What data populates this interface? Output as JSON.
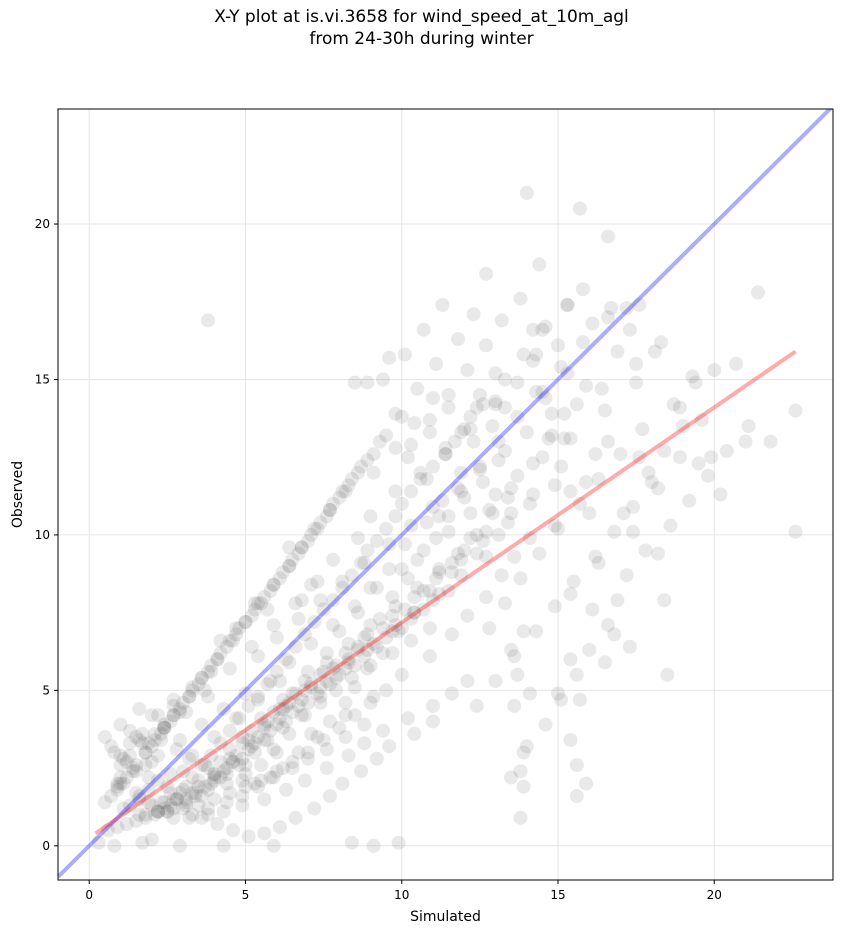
{
  "chart_data": {
    "type": "scatter",
    "title_line1": "X-Y plot at is.vi.3658 for wind_speed_at_10m_agl",
    "title_line2": "from 24-30h during winter",
    "xlabel": "Simulated",
    "ylabel": "Observed",
    "xlim": [
      -1,
      23.8
    ],
    "ylim": [
      -1.1,
      23.7
    ],
    "xticks": [
      0,
      5,
      10,
      15,
      20
    ],
    "yticks": [
      0,
      5,
      10,
      15,
      20
    ],
    "grid": true,
    "colors": {
      "points": "#555555",
      "identity_line": "#0000ff",
      "fit_line": "#ff0000",
      "grid": "#e6e6e6"
    },
    "identity_line": {
      "x": [
        -1,
        23.8
      ],
      "y": [
        -1,
        23.8
      ]
    },
    "fit_line": {
      "x": [
        0.2,
        22.6
      ],
      "y": [
        0.4,
        15.9
      ]
    },
    "points": {
      "x": [
        3.8,
        14.0,
        15.7,
        16.6,
        12.7,
        14.4,
        18.3,
        22.6,
        22.6,
        21.4,
        21.0,
        20.7,
        20.0,
        21.8,
        19.9,
        19.3,
        19.0,
        19.5,
        18.9,
        18.1,
        17.6,
        17.2,
        16.7,
        17.3,
        15.8,
        15.3,
        16.1,
        20.2,
        16.5,
        16.9,
        15.9,
        15.6,
        15.4,
        17.6,
        18.2,
        17.9,
        17.5,
        18.4,
        19.6,
        15.1,
        15.4,
        15.9,
        16.2,
        16.6,
        16.3,
        16.0,
        14.9,
        15.4,
        16.1,
        17.1,
        17.4,
        18.2,
        18.4,
        18.5,
        17.3,
        16.8,
        16.5,
        15.0,
        15.4,
        15.6,
        15.9,
        13.9,
        13.8,
        15.6,
        15.7,
        15.4,
        14.1,
        13.5,
        13.7,
        14.0,
        13.8,
        13.6,
        13.9,
        8.4,
        9.1,
        4.3,
        5.9,
        2.9,
        0.3,
        0.8,
        2.0,
        1.7,
        9.9,
        13.3,
        14.2,
        14.3,
        14.5,
        14.8,
        13.0,
        12.5,
        12.2,
        11.7,
        11.4,
        11.0,
        10.6,
        10.3,
        10.0,
        9.8,
        9.5,
        9.2,
        8.9,
        8.7,
        8.4,
        8.1,
        7.8,
        7.5,
        7.2,
        6.9,
        6.6,
        6.3,
        6.0,
        5.7,
        5.4,
        5.1,
        4.8,
        4.5,
        4.2,
        3.9,
        3.6,
        3.3,
        3.0,
        2.7,
        2.4,
        2.1,
        1.8,
        1.5,
        1.2,
        0.9,
        0.6,
        12.9,
        12.3,
        11.9,
        11.3,
        10.8,
        10.1,
        9.6,
        9.0,
        8.6,
        8.0,
        7.6,
        7.0,
        6.5,
        6.1,
        5.6,
        5.2,
        4.6,
        4.0,
        3.5,
        3.1,
        2.6,
        2.2,
        1.6,
        1.1,
        0.7,
        13.1,
        12.6,
        12.0,
        11.5,
        11.1,
        10.5,
        10.2,
        9.7,
        9.3,
        8.8,
        8.3,
        7.9,
        7.4,
        6.8,
        6.4,
        5.9,
        5.5,
        5.0,
        4.4,
        3.8,
        3.4,
        2.9,
        2.5,
        1.9,
        1.4,
        1.0,
        13.4,
        12.8,
        12.4,
        11.8,
        11.2,
        10.7,
        10.4,
        9.9,
        9.4,
        8.9,
        8.5,
        8.2,
        7.7,
        7.3,
        6.7,
        6.2,
        5.8,
        5.3,
        4.9,
        4.3,
        3.7,
        3.2,
        2.8,
        2.3,
        1.7,
        1.3,
        0.8,
        14.1,
        13.6,
        13.2,
        12.7,
        12.1,
        11.6,
        10.9,
        10.0,
        9.1,
        8.2,
        7.1,
        6.0,
        5.0,
        4.0,
        3.0,
        2.0,
        14.6,
        15.0,
        15.3,
        14.2,
        13.7,
        13.0,
        12.2,
        11.4,
        10.6,
        9.8,
        9.0,
        8.6,
        7.8,
        7.3,
        6.6,
        5.9,
        5.2,
        4.5,
        3.7,
        2.9,
        2.1,
        1.3,
        6.4,
        7.1,
        6.8,
        5.7,
        5.3,
        4.7,
        4.2,
        3.9,
        3.3,
        2.7,
        2.4,
        1.9,
        1.5,
        1.2,
        0.9,
        0.5,
        11.0,
        10.4,
        9.6,
        9.2,
        8.7,
        8.1,
        7.7,
        7.2,
        6.6,
        6.1,
        5.6,
        5.1,
        4.6,
        4.1,
        3.6,
        3.1,
        2.6,
        2.2,
        1.8,
        12.1,
        11.6,
        11.0,
        10.2,
        9.4,
        8.8,
        8.3,
        7.6,
        6.9,
        6.3,
        5.6,
        4.9,
        4.3,
        3.8,
        3.2,
        2.5,
        1.9,
        10.9,
        10.3,
        9.7,
        9.0,
        8.4,
        7.9,
        7.4,
        6.9,
        6.2,
        5.7,
        5.3,
        4.8,
        4.4,
        3.9,
        3.4,
        2.8,
        2.3,
        1.6,
        1.0,
        9.5,
        9.0,
        8.5,
        8.0,
        7.5,
        7.0,
        6.5,
        6.0,
        5.5,
        5.0,
        4.5,
        4.0,
        3.5,
        3.0,
        2.5,
        2.0,
        1.5,
        1.0,
        8.8,
        8.2,
        7.6,
        7.0,
        6.5,
        5.9,
        5.4,
        4.9,
        4.4,
        3.8,
        3.3,
        2.7,
        2.2,
        1.6,
        1.1,
        13.5,
        13.9,
        14.6,
        15.1,
        15.6,
        16.0,
        16.6,
        16.9,
        17.2,
        17.8,
        18.6,
        19.2,
        19.8,
        20.4,
        21.1,
        12.4,
        13.0,
        13.6,
        14.3,
        14.9,
        15.5,
        16.2,
        16.8,
        17.4,
        18.0,
        18.9,
        12.8,
        13.3,
        13.8,
        14.4,
        15.0,
        15.7,
        16.3,
        17.0,
        17.7,
        18.7,
        19.4,
        11.6,
        12.2,
        12.9,
        13.5,
        14.2,
        14.7,
        15.2,
        16.4,
        17.5,
        11.2,
        11.9,
        12.5,
        13.1,
        13.7,
        14.3,
        15.1,
        15.8,
        16.6,
        10.8,
        11.4,
        12.0,
        12.6,
        13.3,
        13.9,
        14.5,
        15.3,
        10.3,
        10.9,
        11.5,
        12.1,
        12.7,
        13.2,
        13.8,
        14.6,
        9.8,
        10.5,
        11.1,
        11.8,
        12.3,
        13.0,
        9.4,
        10.1,
        10.7,
        11.3,
        11.9,
        12.4,
        8.9,
        9.6,
        10.2,
        10.9,
        11.5,
        8.5,
        9.1,
        9.8,
        10.4,
        11.0,
        8.1,
        8.7,
        9.3,
        10.0,
        7.7,
        8.3,
        8.9,
        9.5,
        7.2,
        7.8,
        8.4,
        9.1,
        6.8,
        7.4,
        8.0,
        8.6,
        6.4,
        7.0,
        7.6,
        8.2,
        5.9,
        6.5,
        7.1,
        7.7,
        5.5,
        6.1,
        6.7,
        7.3,
        5.0,
        5.6,
        6.2,
        6.8,
        4.6,
        5.2,
        5.8,
        6.4,
        4.1,
        4.7,
        5.3,
        5.9,
        3.6,
        4.2,
        4.8,
        5.4,
        3.2,
        3.8,
        4.4,
        5.0,
        2.7,
        3.3,
        3.9,
        4.5,
        2.3,
        2.9,
        3.5,
        4.1,
        1.8,
        2.4,
        3.0,
        3.6,
        1.4,
        2.0,
        2.6,
        3.2,
        0.9,
        1.5,
        2.1,
        2.7,
        1.2,
        1.8,
        2.4,
        1.0,
        1.6,
        2.2,
        6.2,
        6.9,
        7.5,
        8.2,
        8.9,
        9.7,
        10.4,
        11.1,
        11.9,
        12.6,
        13.4,
        14.1,
        14.9,
        5.8,
        6.4,
        7.1,
        7.8,
        8.5,
        9.2,
        10.0,
        10.7,
        11.5,
        12.2,
        13.0,
        13.7,
        14.5,
        15.2,
        5.4,
        6.0,
        6.7,
        7.4,
        8.1,
        8.8,
        9.6,
        10.3,
        11.0,
        11.8,
        12.5,
        13.3,
        14.0,
        14.8,
        4.9,
        5.5,
        6.2,
        6.9,
        7.6,
        8.3,
        9.0,
        9.8,
        10.5,
        11.2,
        12.0,
        12.7,
        13.5,
        14.2,
        4.5,
        5.1,
        5.7,
        6.4,
        7.1,
        7.9,
        8.6,
        9.4,
        10.1,
        10.9,
        11.6,
        12.4,
        13.1,
        4.0,
        4.6,
        5.3,
        6.0,
        6.7,
        7.4,
        8.2,
        8.9,
        9.7,
        10.4,
        11.2,
        11.9,
        12.7,
        3.6,
        4.2,
        4.9,
        5.6,
        6.3,
        7.0,
        7.7,
        8.5,
        9.2,
        10.0,
        10.7,
        11.5,
        3.1,
        3.7,
        4.4,
        5.1,
        5.8,
        6.5,
        7.3,
        8.0,
        8.8,
        9.5,
        10.3,
        11.0,
        2.7,
        3.3,
        4.0,
        4.7,
        5.4,
        6.1,
        6.8,
        7.6,
        8.3,
        9.1,
        9.8,
        2.2,
        2.8,
        3.5,
        4.2,
        4.9,
        5.6,
        6.3,
        7.1,
        7.8,
        8.6,
        1.8,
        2.4,
        3.1,
        3.8,
        4.5,
        5.2,
        5.9,
        6.6,
        7.4,
        1.3,
        1.9,
        2.6,
        3.3,
        4.0,
        4.7,
        5.4,
        6.1,
        0.9,
        1.5,
        2.2,
        2.9,
        3.6,
        4.3,
        5.0,
        1.1,
        1.7,
        2.4,
        3.1,
        3.8,
        0.7,
        1.3,
        2.0,
        2.7,
        0.5,
        1.0,
        1.6
      ],
      "y": [
        16.9,
        21.0,
        20.5,
        19.6,
        18.4,
        18.7,
        16.2,
        14.0,
        10.1,
        17.8,
        13.0,
        15.5,
        15.3,
        13.0,
        12.5,
        15.1,
        13.5,
        12.3,
        14.1,
        15.9,
        17.4,
        17.3,
        17.3,
        16.6,
        17.9,
        17.4,
        16.8,
        11.3,
        14.0,
        15.9,
        14.8,
        14.2,
        13.1,
        12.5,
        11.5,
        12.0,
        14.9,
        12.7,
        13.7,
        12.2,
        11.4,
        11.7,
        12.6,
        13.0,
        9.1,
        10.7,
        10.3,
        8.1,
        7.6,
        10.7,
        10.1,
        9.4,
        7.9,
        5.5,
        6.4,
        6.8,
        5.9,
        4.9,
        3.4,
        2.6,
        2.0,
        1.9,
        0.9,
        1.6,
        4.7,
        6.0,
        4.9,
        6.3,
        5.5,
        3.2,
        2.4,
        4.5,
        6.9,
        0.1,
        0.0,
        0.0,
        0.0,
        0.0,
        0.1,
        0.0,
        0.2,
        0.1,
        0.1,
        14.1,
        16.6,
        15.8,
        14.6,
        13.2,
        15.2,
        14.5,
        13.8,
        13.0,
        12.6,
        12.2,
        11.8,
        11.4,
        11.0,
        10.6,
        10.2,
        9.8,
        9.5,
        9.1,
        8.7,
        8.3,
        7.9,
        7.6,
        7.2,
        6.8,
        6.4,
        6.0,
        5.6,
        5.2,
        4.8,
        4.5,
        4.1,
        3.7,
        3.3,
        2.9,
        2.6,
        2.2,
        1.8,
        1.5,
        1.2,
        1.0,
        0.9,
        0.8,
        0.7,
        0.6,
        0.5,
        13.5,
        13.0,
        12.0,
        11.1,
        10.4,
        9.7,
        8.9,
        8.3,
        7.5,
        6.9,
        6.2,
        5.6,
        4.9,
        4.4,
        3.8,
        3.2,
        2.7,
        2.2,
        1.9,
        1.5,
        1.3,
        1.1,
        1.0,
        1.2,
        1.6,
        12.4,
        11.7,
        11.2,
        10.6,
        9.9,
        9.2,
        8.6,
        8.0,
        7.3,
        6.7,
        6.0,
        5.4,
        4.8,
        4.2,
        3.6,
        3.1,
        2.6,
        2.3,
        2.0,
        1.8,
        1.6,
        1.7,
        1.9,
        2.2,
        2.5,
        2.9,
        11.2,
        10.8,
        10.0,
        9.4,
        8.8,
        8.2,
        7.5,
        6.9,
        6.2,
        5.7,
        5.1,
        4.6,
        4.0,
        3.5,
        3.0,
        2.5,
        2.2,
        2.0,
        2.1,
        2.4,
        2.6,
        2.8,
        3.1,
        3.4,
        3.6,
        3.3,
        3.0,
        9.9,
        9.3,
        8.7,
        8.0,
        7.4,
        6.8,
        6.1,
        5.5,
        4.8,
        4.2,
        3.6,
        3.0,
        2.6,
        2.3,
        2.4,
        2.7,
        16.7,
        16.1,
        15.2,
        15.6,
        14.9,
        14.3,
        13.4,
        12.8,
        12.0,
        11.4,
        10.6,
        9.9,
        9.2,
        8.5,
        7.8,
        7.1,
        6.4,
        5.7,
        5.0,
        4.3,
        3.6,
        2.9,
        9.6,
        8.4,
        7.9,
        7.6,
        7.8,
        7.0,
        6.6,
        5.6,
        5.1,
        4.5,
        3.9,
        3.3,
        3.5,
        2.7,
        2.0,
        1.4,
        4.0,
        3.6,
        3.2,
        2.8,
        2.4,
        2.0,
        1.6,
        1.2,
        0.9,
        0.6,
        0.4,
        0.3,
        0.5,
        0.7,
        0.9,
        1.3,
        1.7,
        2.1,
        2.6,
        5.3,
        4.9,
        4.5,
        4.1,
        3.7,
        3.3,
        2.9,
        2.5,
        2.1,
        1.8,
        1.5,
        1.3,
        1.1,
        1.0,
        0.9,
        1.1,
        1.4,
        7.0,
        6.6,
        6.2,
        5.8,
        5.4,
        5.0,
        4.6,
        4.2,
        3.8,
        3.4,
        3.0,
        2.6,
        2.3,
        2.0,
        1.7,
        1.5,
        1.4,
        1.6,
        2.0,
        5.0,
        4.6,
        4.2,
        3.8,
        3.4,
        3.0,
        2.7,
        2.4,
        2.1,
        1.9,
        1.7,
        1.5,
        1.3,
        1.2,
        1.1,
        1.3,
        1.7,
        2.2,
        3.9,
        3.5,
        3.1,
        2.8,
        2.5,
        2.2,
        1.9,
        1.6,
        1.4,
        1.2,
        1.0,
        0.9,
        1.1,
        1.5,
        2.0,
        2.2,
        3.0,
        3.9,
        4.7,
        5.5,
        6.3,
        7.1,
        7.9,
        8.7,
        9.5,
        10.3,
        11.1,
        11.9,
        12.7,
        13.5,
        4.5,
        5.3,
        6.1,
        6.9,
        7.7,
        8.5,
        9.3,
        10.1,
        10.9,
        11.7,
        12.5,
        7.0,
        7.8,
        8.6,
        9.4,
        10.2,
        11.0,
        11.8,
        12.6,
        13.4,
        14.2,
        14.9,
        9.1,
        9.9,
        10.7,
        11.5,
        12.3,
        13.1,
        13.9,
        14.7,
        15.5,
        10.6,
        11.4,
        12.2,
        13.0,
        13.8,
        14.6,
        15.4,
        16.2,
        17.0,
        11.8,
        12.6,
        13.4,
        14.2,
        15.0,
        15.8,
        16.6,
        17.4,
        12.9,
        13.7,
        14.5,
        15.3,
        16.1,
        16.9,
        17.6,
        14.4,
        13.9,
        14.7,
        15.5,
        16.3,
        17.1,
        14.2,
        15.0,
        15.8,
        16.6,
        17.4,
        13.3,
        14.1,
        14.9,
        15.7,
        12.5,
        13.3,
        14.1,
        14.9,
        12.0,
        12.8,
        13.6,
        14.4,
        11.4,
        12.2,
        13.0,
        13.8,
        10.8,
        11.6,
        12.4,
        13.2,
        10.2,
        11.0,
        11.8,
        12.6,
        9.6,
        10.4,
        11.2,
        12.0,
        9.0,
        9.8,
        10.6,
        11.4,
        8.4,
        9.2,
        10.0,
        10.8,
        7.8,
        8.6,
        9.4,
        10.2,
        7.2,
        8.0,
        8.8,
        9.6,
        6.6,
        7.4,
        8.2,
        9.0,
        6.0,
        6.8,
        7.6,
        8.4,
        5.4,
        6.2,
        7.0,
        7.8,
        4.8,
        5.6,
        6.4,
        7.2,
        4.2,
        5.0,
        5.8,
        6.6,
        3.6,
        4.4,
        5.2,
        6.0,
        3.0,
        3.8,
        4.6,
        5.4,
        2.4,
        3.2,
        4.0,
        4.8,
        1.8,
        2.6,
        3.4,
        4.2,
        2.2,
        3.0,
        3.8,
        2.6,
        3.4,
        4.2,
        4.4,
        5.0,
        5.6,
        6.2,
        6.8,
        7.4,
        8.0,
        8.6,
        9.2,
        9.8,
        10.4,
        11.0,
        11.6,
        5.3,
        5.9,
        6.5,
        7.1,
        7.7,
        8.3,
        8.9,
        9.5,
        10.1,
        10.7,
        11.3,
        11.9,
        12.5,
        13.1,
        6.1,
        6.7,
        7.3,
        7.9,
        8.5,
        9.1,
        9.7,
        10.3,
        10.9,
        11.5,
        12.1,
        12.7,
        13.3,
        13.9,
        3.5,
        4.1,
        4.7,
        5.3,
        5.9,
        6.5,
        7.1,
        7.7,
        8.3,
        8.9,
        9.5,
        10.1,
        10.7,
        11.3,
        2.8,
        3.4,
        4.0,
        4.6,
        5.2,
        5.8,
        6.4,
        7.0,
        7.6,
        8.2,
        8.8,
        9.4,
        10.0,
        2.1,
        2.7,
        3.3,
        3.9,
        4.5,
        5.1,
        5.7,
        6.3,
        6.9,
        7.5,
        8.1,
        8.7,
        9.3,
        1.6,
        2.2,
        2.8,
        3.4,
        4.0,
        4.6,
        5.2,
        5.8,
        6.4,
        7.0,
        7.6,
        8.2,
        1.4,
        1.9,
        2.5,
        3.1,
        3.7,
        4.3,
        4.9,
        5.5,
        6.1,
        6.7,
        7.3,
        7.9,
        1.2,
        1.7,
        2.3,
        2.9,
        3.5,
        4.1,
        4.7,
        5.3,
        5.9,
        6.5,
        7.1,
        1.1,
        1.5,
        2.1,
        2.7,
        3.3,
        3.9,
        4.5,
        5.1,
        5.7,
        6.3,
        1.0,
        1.4,
        1.9,
        2.5,
        3.1,
        3.7,
        4.3,
        4.9,
        5.5,
        1.3,
        1.8,
        2.3,
        2.9,
        3.5,
        4.1,
        4.7,
        5.3,
        1.9,
        2.4,
        2.9,
        3.4,
        3.9,
        4.4,
        4.9,
        2.8,
        3.3,
        3.8,
        4.3,
        4.8,
        3.2,
        3.7,
        4.2,
        4.7,
        3.5,
        3.9,
        4.4
      ]
    }
  }
}
